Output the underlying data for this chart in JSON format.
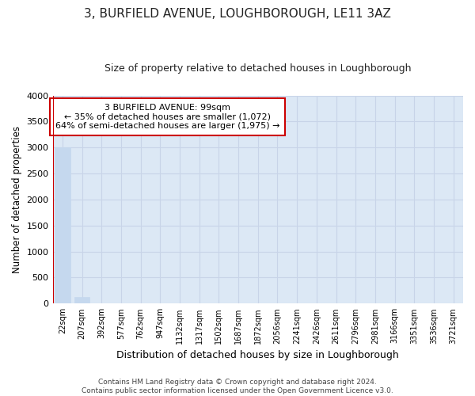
{
  "title": "3, BURFIELD AVENUE, LOUGHBOROUGH, LE11 3AZ",
  "subtitle": "Size of property relative to detached houses in Loughborough",
  "xlabel": "Distribution of detached houses by size in Loughborough",
  "ylabel": "Number of detached properties",
  "categories": [
    "22sqm",
    "207sqm",
    "392sqm",
    "577sqm",
    "762sqm",
    "947sqm",
    "1132sqm",
    "1317sqm",
    "1502sqm",
    "1687sqm",
    "1872sqm",
    "2056sqm",
    "2241sqm",
    "2426sqm",
    "2611sqm",
    "2796sqm",
    "2981sqm",
    "3166sqm",
    "3351sqm",
    "3536sqm",
    "3721sqm"
  ],
  "values": [
    3000,
    120,
    5,
    2,
    1,
    1,
    1,
    0,
    0,
    0,
    0,
    0,
    0,
    0,
    0,
    0,
    0,
    0,
    0,
    0,
    0
  ],
  "bar_color": "#c5d8ee",
  "bar_edge_color": "#c5d8ee",
  "grid_color": "#c8d4e8",
  "background_color": "#dce8f5",
  "ylim": [
    0,
    4000
  ],
  "yticks": [
    0,
    500,
    1000,
    1500,
    2000,
    2500,
    3000,
    3500,
    4000
  ],
  "red_line_x": -0.5,
  "annotation_line1": "3 BURFIELD AVENUE: 99sqm",
  "annotation_line2": "← 35% of detached houses are smaller (1,072)",
  "annotation_line3": "64% of semi-detached houses are larger (1,975) →",
  "red_line_color": "#cc0000",
  "annotation_box_facecolor": "#ffffff",
  "annotation_box_edgecolor": "#cc0000",
  "footer_line1": "Contains HM Land Registry data © Crown copyright and database right 2024.",
  "footer_line2": "Contains public sector information licensed under the Open Government Licence v3.0."
}
